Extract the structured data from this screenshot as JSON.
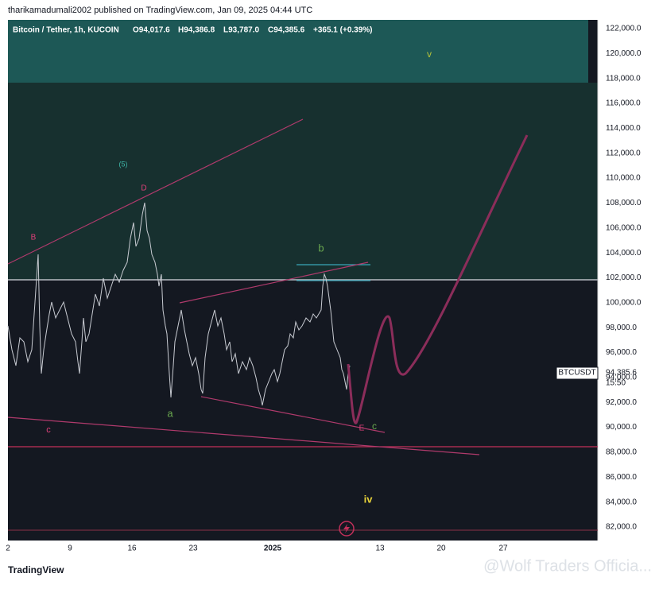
{
  "header": {
    "publisher": "tharikamadumali2002 published on TradingView.com, Jan 09, 2025 04:44 UTC"
  },
  "legend": {
    "symbol": "Bitcoin / Tether, 1h, KUCOIN",
    "open": "O94,017.6",
    "high": "H94,386.8",
    "low": "L93,787.0",
    "close": "C94,385.6",
    "change": "+365.1 (+0.39%)"
  },
  "price_axis": [
    "122,000.0",
    "120,000.0",
    "118,000.0",
    "116,000.0",
    "114,000.0",
    "112,000.0",
    "110,000.0",
    "108,000.0",
    "106,000.0",
    "104,000.0",
    "102,000.0",
    "100,000.0",
    "98,000.0",
    "96,000.0",
    "94,000.0",
    "92,000.0",
    "90,000.0",
    "88,000.0",
    "86,000.0",
    "84,000.0",
    "82,000.0"
  ],
  "time_axis": [
    "2",
    "9",
    "16",
    "23",
    "2025",
    "13",
    "20",
    "27"
  ],
  "last_price": {
    "symbol": "BTCUSDT",
    "price": "94,385.6",
    "countdown": "15:50"
  },
  "annotations": [
    {
      "label": "(5)"
    },
    {
      "label": "D"
    },
    {
      "label": "B"
    },
    {
      "label": "b"
    },
    {
      "label": "a"
    },
    {
      "label": "c"
    },
    {
      "label": "E"
    },
    {
      "label": "c"
    },
    {
      "label": "v"
    },
    {
      "label": "iv"
    }
  ],
  "footer": {
    "brand": "TradingView",
    "watermark": "@Wolf Traders Officia..."
  }
}
